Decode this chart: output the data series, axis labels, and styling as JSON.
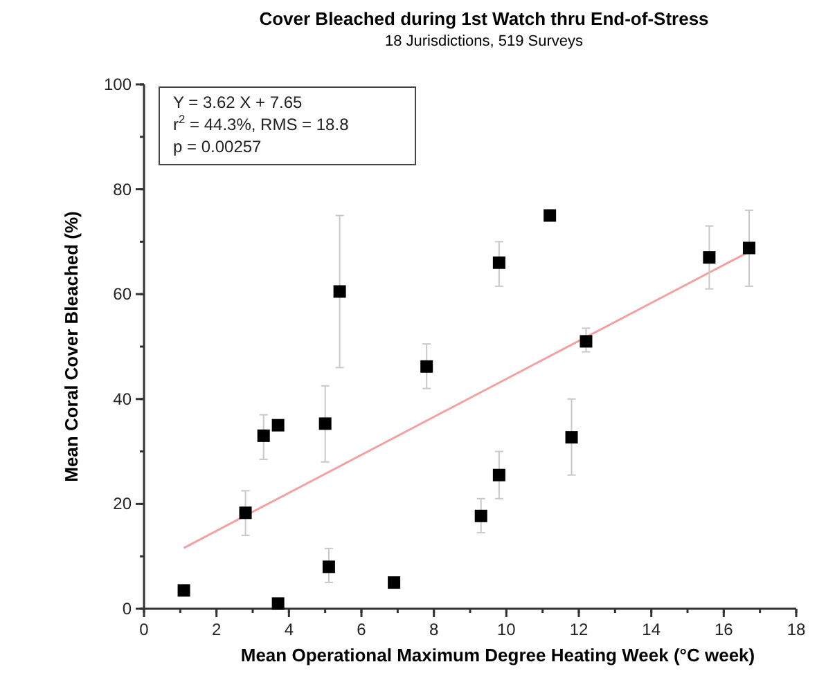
{
  "chart_data": {
    "type": "scatter",
    "title": "Cover Bleached during 1st Watch thru End-of-Stress",
    "subtitle": "18 Jurisdictions, 519 Surveys",
    "xlabel": "Mean Operational Maximum Degree Heating Week (°C week)",
    "ylabel": "Mean Coral Cover Bleached (%)",
    "annotations": [
      "Y = 3.62 X + 7.65",
      "r$^{2}$ = 44.3%, RMS = 18.8",
      "p = 0.00257"
    ],
    "xlim": [
      0,
      18
    ],
    "xticks": [
      0,
      2,
      4,
      6,
      8,
      10,
      12,
      14,
      16,
      18
    ],
    "ylim": [
      0,
      100
    ],
    "yticks": [
      0,
      20,
      40,
      60,
      80,
      100
    ],
    "grid": false,
    "series": [
      {
        "marker": "square",
        "color": "#000000",
        "x": [
          1.1,
          2.8,
          3.3,
          3.7,
          3.7,
          5.0,
          5.1,
          5.4,
          6.9,
          7.8,
          9.3,
          9.8,
          9.8,
          11.2,
          11.8,
          12.2,
          15.6,
          16.7
        ],
        "values": [
          3.5,
          18.3,
          33,
          35,
          1,
          35.3,
          8,
          60.5,
          5,
          46.2,
          17.7,
          25.5,
          66,
          75,
          32.7,
          51,
          67,
          68.8
        ],
        "errors": [
          null,
          [
            14,
            22.5
          ],
          [
            28.5,
            37
          ],
          null,
          null,
          [
            28,
            42.5
          ],
          [
            5,
            11.5
          ],
          [
            46,
            75
          ],
          null,
          [
            42,
            50.5
          ],
          [
            14.5,
            21
          ],
          [
            21,
            30
          ],
          [
            61.5,
            70
          ],
          null,
          [
            25.5,
            40
          ],
          [
            49,
            53.5
          ],
          [
            61,
            73
          ],
          [
            61.5,
            76
          ]
        ]
      },
      {
        "type": "line",
        "color": "#f4a0a0",
        "x": [
          1.1,
          16.7
        ],
        "values": [
          11.6,
          68.1
        ]
      }
    ]
  }
}
